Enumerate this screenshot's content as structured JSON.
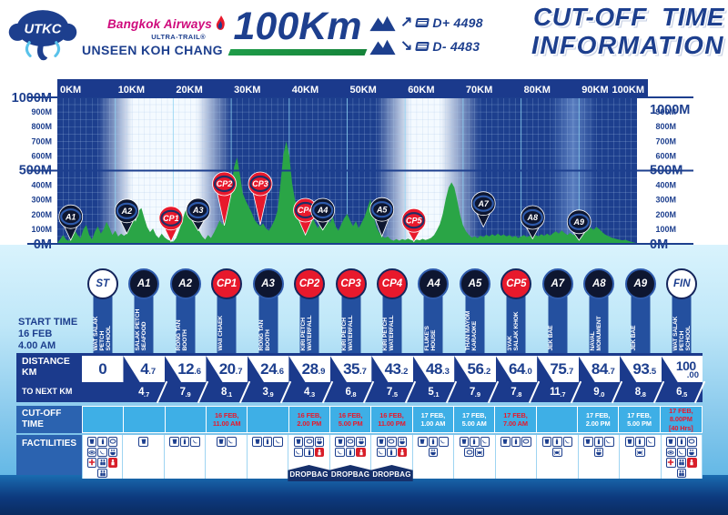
{
  "header": {
    "logo": {
      "monogram": "UTKC",
      "airline": "Bangkok Airways",
      "series": "ULTRA-TRAIL®",
      "event": "UNSEEN KOH CHANG"
    },
    "race_distance": "100Km",
    "elevation_gain": "D+ 4498",
    "elevation_loss": "D- 4483",
    "title_line1": "CUT-OFF TIME",
    "title_line2": "INFORMATION"
  },
  "colors": {
    "navy": "#1d3f8e",
    "band_navy": "#1b3a8c",
    "red": "#e8192c",
    "green": "#2aa546",
    "cutoff_cell_blue": "#3eafe6",
    "label_blue": "#2b63b0",
    "ribbon_blue": "#24509f",
    "magenta": "#cf0a7c"
  },
  "chart_data": {
    "type": "area",
    "title": "100 km course elevation profile",
    "xlabel": "distance (KM)",
    "ylabel": "elevation (M)",
    "xlim": [
      0,
      100
    ],
    "ylim": [
      0,
      1000
    ],
    "x_ticks": [
      "0KM",
      "10KM",
      "20KM",
      "30KM",
      "40KM",
      "50KM",
      "60KM",
      "70KM",
      "80KM",
      "90KM",
      "100KM"
    ],
    "y_ticks_major": [
      "1000M",
      "500M",
      "0M"
    ],
    "y_ticks_minor": [
      900,
      800,
      700,
      600,
      400,
      300,
      200,
      100
    ],
    "grid": "on",
    "profile_color": "#2aa546",
    "background_stops": [
      [
        0,
        "#1d3f8e"
      ],
      [
        7,
        "#1d3f8e"
      ],
      [
        13,
        "#f4faff"
      ],
      [
        24,
        "#f4faff"
      ],
      [
        30,
        "#1d3f8e"
      ],
      [
        55,
        "#1d3f8e"
      ],
      [
        61,
        "#f4faff"
      ],
      [
        66,
        "#f4faff"
      ],
      [
        73,
        "#1d3f8e"
      ],
      [
        85,
        "#1d3f8e"
      ],
      [
        89,
        "#5b7fc0"
      ],
      [
        93,
        "#1d3f8e"
      ],
      [
        100,
        "#1d3f8e"
      ]
    ],
    "profile": [
      [
        0,
        5
      ],
      [
        1,
        60
      ],
      [
        1.5,
        30
      ],
      [
        2,
        20
      ],
      [
        3,
        95
      ],
      [
        3.5,
        60
      ],
      [
        4,
        40
      ],
      [
        4.5,
        100
      ],
      [
        5,
        130
      ],
      [
        5.5,
        60
      ],
      [
        6,
        30
      ],
      [
        6.5,
        85
      ],
      [
        7,
        120
      ],
      [
        7.5,
        70
      ],
      [
        8,
        100
      ],
      [
        8.5,
        150
      ],
      [
        9,
        110
      ],
      [
        9.5,
        60
      ],
      [
        10,
        90
      ],
      [
        10.5,
        50
      ],
      [
        11,
        70
      ],
      [
        11.5,
        55
      ],
      [
        12,
        70
      ],
      [
        12.5,
        120
      ],
      [
        13,
        205
      ],
      [
        13.5,
        150
      ],
      [
        14,
        225
      ],
      [
        14.5,
        245
      ],
      [
        15,
        175
      ],
      [
        15.5,
        115
      ],
      [
        16,
        80
      ],
      [
        16.5,
        105
      ],
      [
        17,
        60
      ],
      [
        17.5,
        40
      ],
      [
        18,
        70
      ],
      [
        18.5,
        45
      ],
      [
        19,
        30
      ],
      [
        19.5,
        20
      ],
      [
        20,
        15
      ],
      [
        20.5,
        40
      ],
      [
        21,
        90
      ],
      [
        21.5,
        150
      ],
      [
        22,
        215
      ],
      [
        22.5,
        255
      ],
      [
        23,
        230
      ],
      [
        23.5,
        175
      ],
      [
        24,
        115
      ],
      [
        24.5,
        85
      ],
      [
        25,
        50
      ],
      [
        25.5,
        30
      ],
      [
        26,
        60
      ],
      [
        26.5,
        40
      ],
      [
        27,
        75
      ],
      [
        27.5,
        115
      ],
      [
        28,
        160
      ],
      [
        28.5,
        130
      ],
      [
        29,
        185
      ],
      [
        29.5,
        265
      ],
      [
        30,
        390
      ],
      [
        30.5,
        525
      ],
      [
        31,
        590
      ],
      [
        31.5,
        470
      ],
      [
        32,
        345
      ],
      [
        32.5,
        295
      ],
      [
        33,
        255
      ],
      [
        33.5,
        215
      ],
      [
        34,
        165
      ],
      [
        34.5,
        140
      ],
      [
        35,
        120
      ],
      [
        35.5,
        140
      ],
      [
        36,
        105
      ],
      [
        36.5,
        90
      ],
      [
        37,
        125
      ],
      [
        37.5,
        165
      ],
      [
        38,
        230
      ],
      [
        38.5,
        410
      ],
      [
        39,
        610
      ],
      [
        39.5,
        700
      ],
      [
        40,
        610
      ],
      [
        40.5,
        415
      ],
      [
        41,
        300
      ],
      [
        41.5,
        255
      ],
      [
        42,
        215
      ],
      [
        42.5,
        145
      ],
      [
        43,
        80
      ],
      [
        43.5,
        125
      ],
      [
        44,
        180
      ],
      [
        44.5,
        140
      ],
      [
        45,
        105
      ],
      [
        45.5,
        160
      ],
      [
        46,
        225
      ],
      [
        46.5,
        180
      ],
      [
        47,
        140
      ],
      [
        47.5,
        185
      ],
      [
        48,
        120
      ],
      [
        48.5,
        90
      ],
      [
        49,
        135
      ],
      [
        49.5,
        175
      ],
      [
        50,
        205
      ],
      [
        50.5,
        160
      ],
      [
        51,
        120
      ],
      [
        51.5,
        155
      ],
      [
        52,
        105
      ],
      [
        52.5,
        145
      ],
      [
        53,
        185
      ],
      [
        53.5,
        245
      ],
      [
        54,
        305
      ],
      [
        54.5,
        200
      ],
      [
        55,
        120
      ],
      [
        55.5,
        80
      ],
      [
        56,
        55
      ],
      [
        56.5,
        40
      ],
      [
        57,
        50
      ],
      [
        57.5,
        30
      ],
      [
        58,
        22
      ],
      [
        58.5,
        32
      ],
      [
        59,
        22
      ],
      [
        59.5,
        32
      ],
      [
        60,
        26
      ],
      [
        60.5,
        36
      ],
      [
        61,
        26
      ],
      [
        61.5,
        20
      ],
      [
        62,
        30
      ],
      [
        62.5,
        24
      ],
      [
        63,
        34
      ],
      [
        63.5,
        26
      ],
      [
        64,
        32
      ],
      [
        64.5,
        42
      ],
      [
        65,
        60
      ],
      [
        65.5,
        95
      ],
      [
        66,
        135
      ],
      [
        66.5,
        205
      ],
      [
        67,
        305
      ],
      [
        67.5,
        385
      ],
      [
        68,
        420
      ],
      [
        68.5,
        385
      ],
      [
        69,
        295
      ],
      [
        69.5,
        195
      ],
      [
        70,
        125
      ],
      [
        70.5,
        85
      ],
      [
        71,
        60
      ],
      [
        71.5,
        42
      ],
      [
        72,
        52
      ],
      [
        72.5,
        40
      ],
      [
        73,
        56
      ],
      [
        73.5,
        46
      ],
      [
        74,
        62
      ],
      [
        74.5,
        50
      ],
      [
        75,
        66
      ],
      [
        75.5,
        54
      ],
      [
        76,
        70
      ],
      [
        76.5,
        55
      ],
      [
        77,
        64
      ],
      [
        77.5,
        50
      ],
      [
        78,
        60
      ],
      [
        78.5,
        45
      ],
      [
        79,
        55
      ],
      [
        79.5,
        40
      ],
      [
        80,
        50
      ],
      [
        80.5,
        60
      ],
      [
        81,
        46
      ],
      [
        81.5,
        56
      ],
      [
        82,
        46
      ],
      [
        82.5,
        60
      ],
      [
        83,
        50
      ],
      [
        83.5,
        66
      ],
      [
        84,
        54
      ],
      [
        84.5,
        70
      ],
      [
        85,
        56
      ],
      [
        85.5,
        72
      ],
      [
        86,
        86
      ],
      [
        86.5,
        70
      ],
      [
        87,
        92
      ],
      [
        87.5,
        74
      ],
      [
        88,
        60
      ],
      [
        88.5,
        76
      ],
      [
        89,
        60
      ],
      [
        89.5,
        70
      ],
      [
        90,
        55
      ],
      [
        90.5,
        66
      ],
      [
        91,
        76
      ],
      [
        91.5,
        92
      ],
      [
        92,
        112
      ],
      [
        92.5,
        95
      ],
      [
        93,
        116
      ],
      [
        93.5,
        100
      ],
      [
        94,
        80
      ],
      [
        94.5,
        64
      ],
      [
        95,
        54
      ],
      [
        95.5,
        44
      ],
      [
        96,
        38
      ],
      [
        96.5,
        33
      ],
      [
        97,
        28
      ],
      [
        97.5,
        24
      ],
      [
        98,
        28
      ],
      [
        98.5,
        20
      ],
      [
        99,
        14
      ],
      [
        100,
        5
      ]
    ],
    "markers": [
      {
        "id": "A1",
        "type": "aid",
        "km": 2.3,
        "head_m": 185,
        "tip_m": 25
      },
      {
        "id": "A2",
        "type": "aid",
        "km": 12,
        "head_m": 225,
        "tip_m": 70
      },
      {
        "id": "CP1",
        "type": "cp",
        "km": 19.6,
        "head_m": 175,
        "tip_m": 15
      },
      {
        "id": "A3",
        "type": "aid",
        "km": 24.3,
        "head_m": 230,
        "tip_m": 90
      },
      {
        "id": "CP2",
        "type": "cp",
        "km": 28.8,
        "head_m": 410,
        "tip_m": 125
      },
      {
        "id": "CP3",
        "type": "cp",
        "km": 35,
        "head_m": 410,
        "tip_m": 130
      },
      {
        "id": "CP4",
        "type": "cp",
        "km": 42.8,
        "head_m": 230,
        "tip_m": 60
      },
      {
        "id": "A4",
        "type": "aid",
        "km": 45.8,
        "head_m": 230,
        "tip_m": 95
      },
      {
        "id": "A5",
        "type": "aid",
        "km": 56,
        "head_m": 235,
        "tip_m": 50
      },
      {
        "id": "CP5",
        "type": "cp",
        "km": 61.5,
        "head_m": 160,
        "tip_m": 15
      },
      {
        "id": "A7",
        "type": "aid",
        "km": 73.5,
        "head_m": 275,
        "tip_m": 115
      },
      {
        "id": "A8",
        "type": "aid",
        "km": 82,
        "head_m": 180,
        "tip_m": 35
      },
      {
        "id": "A9",
        "type": "aid",
        "km": 90,
        "head_m": 150,
        "tip_m": 25
      }
    ]
  },
  "table": {
    "row_labels": {
      "start_time": "START TIME\n16 FEB\n4.00 AM",
      "distance": "DISTANCE\nKM",
      "to_next": "TO NEXT KM",
      "cutoff": "CUT-OFF\nTIME",
      "facilities": "FACTILITIES"
    },
    "dropbag_label": "DROPBAG",
    "stations": [
      {
        "id": "ST",
        "kind": "start",
        "name": "WAT SALAK\nPETCH\nSCHOOL",
        "dist_int": "0",
        "dist_dec": "",
        "next_int": "",
        "next_dec": "",
        "cutoff": [],
        "cutoff_color": "",
        "facilities": [
          "cup",
          "bottle",
          "sponge",
          "plate",
          "banana",
          "noodles",
          "medical",
          "people",
          "toilet",
          "people"
        ],
        "dropbag": false
      },
      {
        "id": "A1",
        "kind": "aid",
        "name": "SALAK PETCH\nSEAFOOD",
        "dist_int": "4",
        "dist_dec": ".7",
        "next_int": "4",
        "next_dec": ".7",
        "cutoff": [],
        "cutoff_color": "",
        "facilities": [
          "cup"
        ],
        "dropbag": false
      },
      {
        "id": "A2",
        "kind": "aid",
        "name": "RONG TAN\nBOOTH",
        "dist_int": "12",
        "dist_dec": ".6",
        "next_int": "7",
        "next_dec": ".9",
        "cutoff": [],
        "cutoff_color": "",
        "facilities": [
          "cup",
          "bottle",
          "banana"
        ],
        "dropbag": false
      },
      {
        "id": "CP1",
        "kind": "cp",
        "name": "WAII CHAEK",
        "dist_int": "20",
        "dist_dec": ".7",
        "next_int": "8",
        "next_dec": ".1",
        "cutoff": [
          "16 FEB,",
          "11.00 AM"
        ],
        "cutoff_color": "#e8192c",
        "facilities": [
          "cup",
          "banana"
        ],
        "dropbag": false
      },
      {
        "id": "A3",
        "kind": "aid",
        "name": "RONG TAN\nBOOTH",
        "dist_int": "24",
        "dist_dec": ".6",
        "next_int": "3",
        "next_dec": ".9",
        "cutoff": [],
        "cutoff_color": "",
        "facilities": [
          "cup",
          "bottle",
          "banana"
        ],
        "dropbag": false
      },
      {
        "id": "CP2",
        "kind": "cp",
        "name": "KIRI PETCH\nWATERFALL",
        "dist_int": "28",
        "dist_dec": ".9",
        "next_int": "4",
        "next_dec": ".3",
        "cutoff": [
          "16 FEB,",
          "2.00 PM"
        ],
        "cutoff_color": "#e8192c",
        "facilities": [
          "cup",
          "sponge",
          "noodles",
          "banana",
          "bottle",
          "toilet"
        ],
        "dropbag": true
      },
      {
        "id": "CP3",
        "kind": "cp",
        "name": "KIRI PETCH\nWATERFALL",
        "dist_int": "35",
        "dist_dec": ".7",
        "next_int": "6",
        "next_dec": ".8",
        "cutoff": [
          "16 FEB,",
          "5.00 PM"
        ],
        "cutoff_color": "#e8192c",
        "facilities": [
          "cup",
          "sponge",
          "noodles",
          "banana",
          "bottle",
          "toilet"
        ],
        "dropbag": true
      },
      {
        "id": "CP4",
        "kind": "cp",
        "name": "KIRI PETCH\nWATERFALL",
        "dist_int": "43",
        "dist_dec": ".2",
        "next_int": "7",
        "next_dec": ".5",
        "cutoff": [
          "16 FEB,",
          "11.00 PM"
        ],
        "cutoff_color": "#e8192c",
        "facilities": [
          "cup",
          "sponge",
          "noodles",
          "banana",
          "bottle",
          "toilet"
        ],
        "dropbag": true
      },
      {
        "id": "A4",
        "kind": "aid",
        "name": "FLUKE'S\nHOUSE",
        "dist_int": "48",
        "dist_dec": ".3",
        "next_int": "5",
        "next_dec": ".1",
        "cutoff": [
          "17 FEB,",
          "1.00 AM"
        ],
        "cutoff_color": "#ffffff",
        "facilities": [
          "cup",
          "bottle",
          "banana",
          "noodles"
        ],
        "dropbag": false
      },
      {
        "id": "A5",
        "kind": "aid",
        "name": "THAN MAYOM\nKARAOKE",
        "dist_int": "56",
        "dist_dec": ".2",
        "next_int": "7",
        "next_dec": ".9",
        "cutoff": [
          "17 FEB,",
          "5.00 AM"
        ],
        "cutoff_color": "#ffffff",
        "facilities": [
          "cup",
          "bottle",
          "banana",
          "sponge",
          "crab"
        ],
        "dropbag": false
      },
      {
        "id": "CP5",
        "kind": "cp",
        "name": "3YAK\nSALAK KHOK",
        "dist_int": "64",
        "dist_dec": ".0",
        "next_int": "7",
        "next_dec": ".8",
        "cutoff": [
          "17 FEB,",
          "7.00 AM"
        ],
        "cutoff_color": "#e8192c",
        "facilities": [
          "cup",
          "bottle",
          "sponge"
        ],
        "dropbag": false
      },
      {
        "id": "A7",
        "kind": "aid",
        "name": "JEK BAE",
        "dist_int": "75",
        "dist_dec": ".7",
        "next_int": "11",
        "next_dec": ".7",
        "cutoff": [],
        "cutoff_color": "",
        "facilities": [
          "cup",
          "bottle",
          "banana",
          "crab"
        ],
        "dropbag": false
      },
      {
        "id": "A8",
        "kind": "aid",
        "name": "NAVAL\nMONUMENT",
        "dist_int": "84",
        "dist_dec": ".7",
        "next_int": "9",
        "next_dec": ".0",
        "cutoff": [
          "17 FEB,",
          "2.00 PM"
        ],
        "cutoff_color": "#ffffff",
        "facilities": [
          "cup",
          "bottle",
          "banana",
          "noodles"
        ],
        "dropbag": false
      },
      {
        "id": "A9",
        "kind": "aid",
        "name": "JEK BAE",
        "dist_int": "93",
        "dist_dec": ".5",
        "next_int": "8",
        "next_dec": ".8",
        "cutoff": [
          "17 FEB,",
          "5.00 PM"
        ],
        "cutoff_color": "#ffffff",
        "facilities": [
          "cup",
          "bottle",
          "banana",
          "crab"
        ],
        "dropbag": false
      },
      {
        "id": "FIN",
        "kind": "start",
        "name": "WAT SALAK\nPETCH\nSCHOOL",
        "dist_int": "100",
        "dist_dec": ".00",
        "next_int": "6",
        "next_dec": ".5",
        "cutoff": [
          "17 FEB,",
          "8.00PM",
          "[40 Hrs]"
        ],
        "cutoff_color": "#e8192c",
        "facilities": [
          "cup",
          "bottle",
          "sponge",
          "plate",
          "banana",
          "noodles",
          "medical",
          "people",
          "toilet",
          "people"
        ],
        "dropbag": false
      }
    ]
  }
}
